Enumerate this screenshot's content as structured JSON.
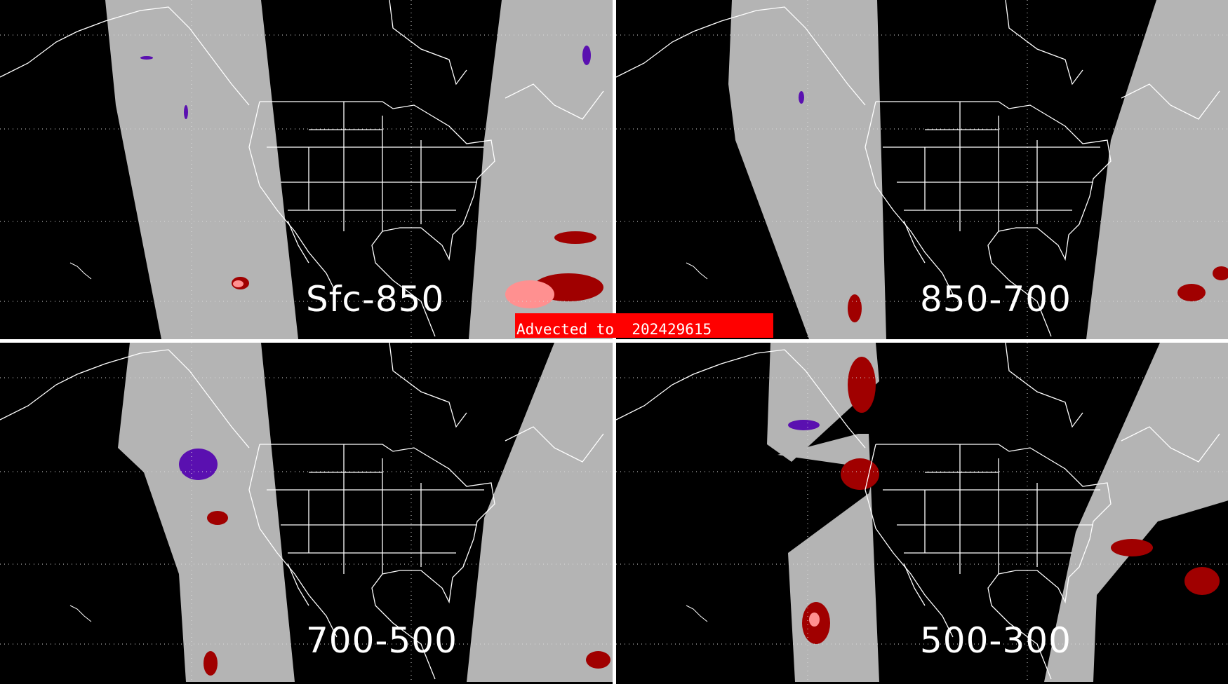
{
  "panels": [
    {
      "label": "Sfc-850",
      "variant": 0
    },
    {
      "label": "850-700",
      "variant": 1
    },
    {
      "label": "700-500",
      "variant": 2
    },
    {
      "label": "500-300",
      "variant": 3
    }
  ],
  "banner": {
    "prefix": "Advected to",
    "value": "202429615"
  },
  "colors": {
    "background": "#000000",
    "no_data": "#b4b4b4",
    "dark_red": "#a00000",
    "pink": "#ff9090",
    "purple": "#5a10b0",
    "banner": "#ff0000",
    "outline": "#ffffff"
  }
}
